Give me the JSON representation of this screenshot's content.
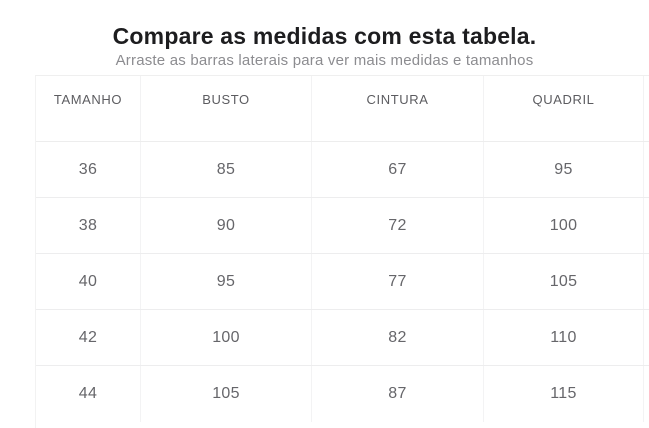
{
  "header": {
    "title": "Compare as medidas com esta tabela.",
    "subtitle": "Arraste as barras laterais para ver mais medidas e tamanhos"
  },
  "table": {
    "headers": [
      "TAMANHO",
      "BUSTO",
      "CINTURA",
      "QUADRIL"
    ],
    "rows": [
      [
        "36",
        "85",
        "67",
        "95"
      ],
      [
        "38",
        "90",
        "72",
        "100"
      ],
      [
        "40",
        "95",
        "77",
        "105"
      ],
      [
        "42",
        "100",
        "82",
        "110"
      ],
      [
        "44",
        "105",
        "87",
        "115"
      ]
    ]
  },
  "colors": {
    "title_text": "#1d1d1f",
    "subtitle_text": "#8c8c90",
    "header_text": "#5c5c60",
    "cell_text": "#66666a",
    "border": "#ededed",
    "background": "#ffffff"
  }
}
